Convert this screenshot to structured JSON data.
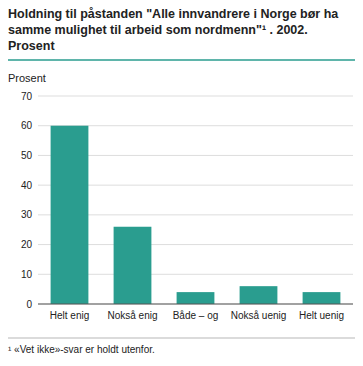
{
  "chart_data": {
    "type": "bar",
    "title": "Holdning til påstanden \"Alle innvandrere i Norge bør ha samme mulighet til arbeid som nordmenn\"¹ . 2002.",
    "subtitle": "Prosent",
    "ylabel": "Prosent",
    "annotations": [
      "¹  «Vet ikke»-svar er holdt utenfor."
    ],
    "categories": [
      "Helt enig",
      "Nokså enig",
      "Både – og",
      "Nokså uenig",
      "Helt uenig"
    ],
    "values": [
      60,
      26,
      4,
      6,
      4
    ],
    "color": "#2a9d8f",
    "ylim": [
      0,
      70
    ],
    "yticks": [
      0,
      10,
      20,
      30,
      40,
      50,
      60,
      70
    ],
    "grid": true
  }
}
